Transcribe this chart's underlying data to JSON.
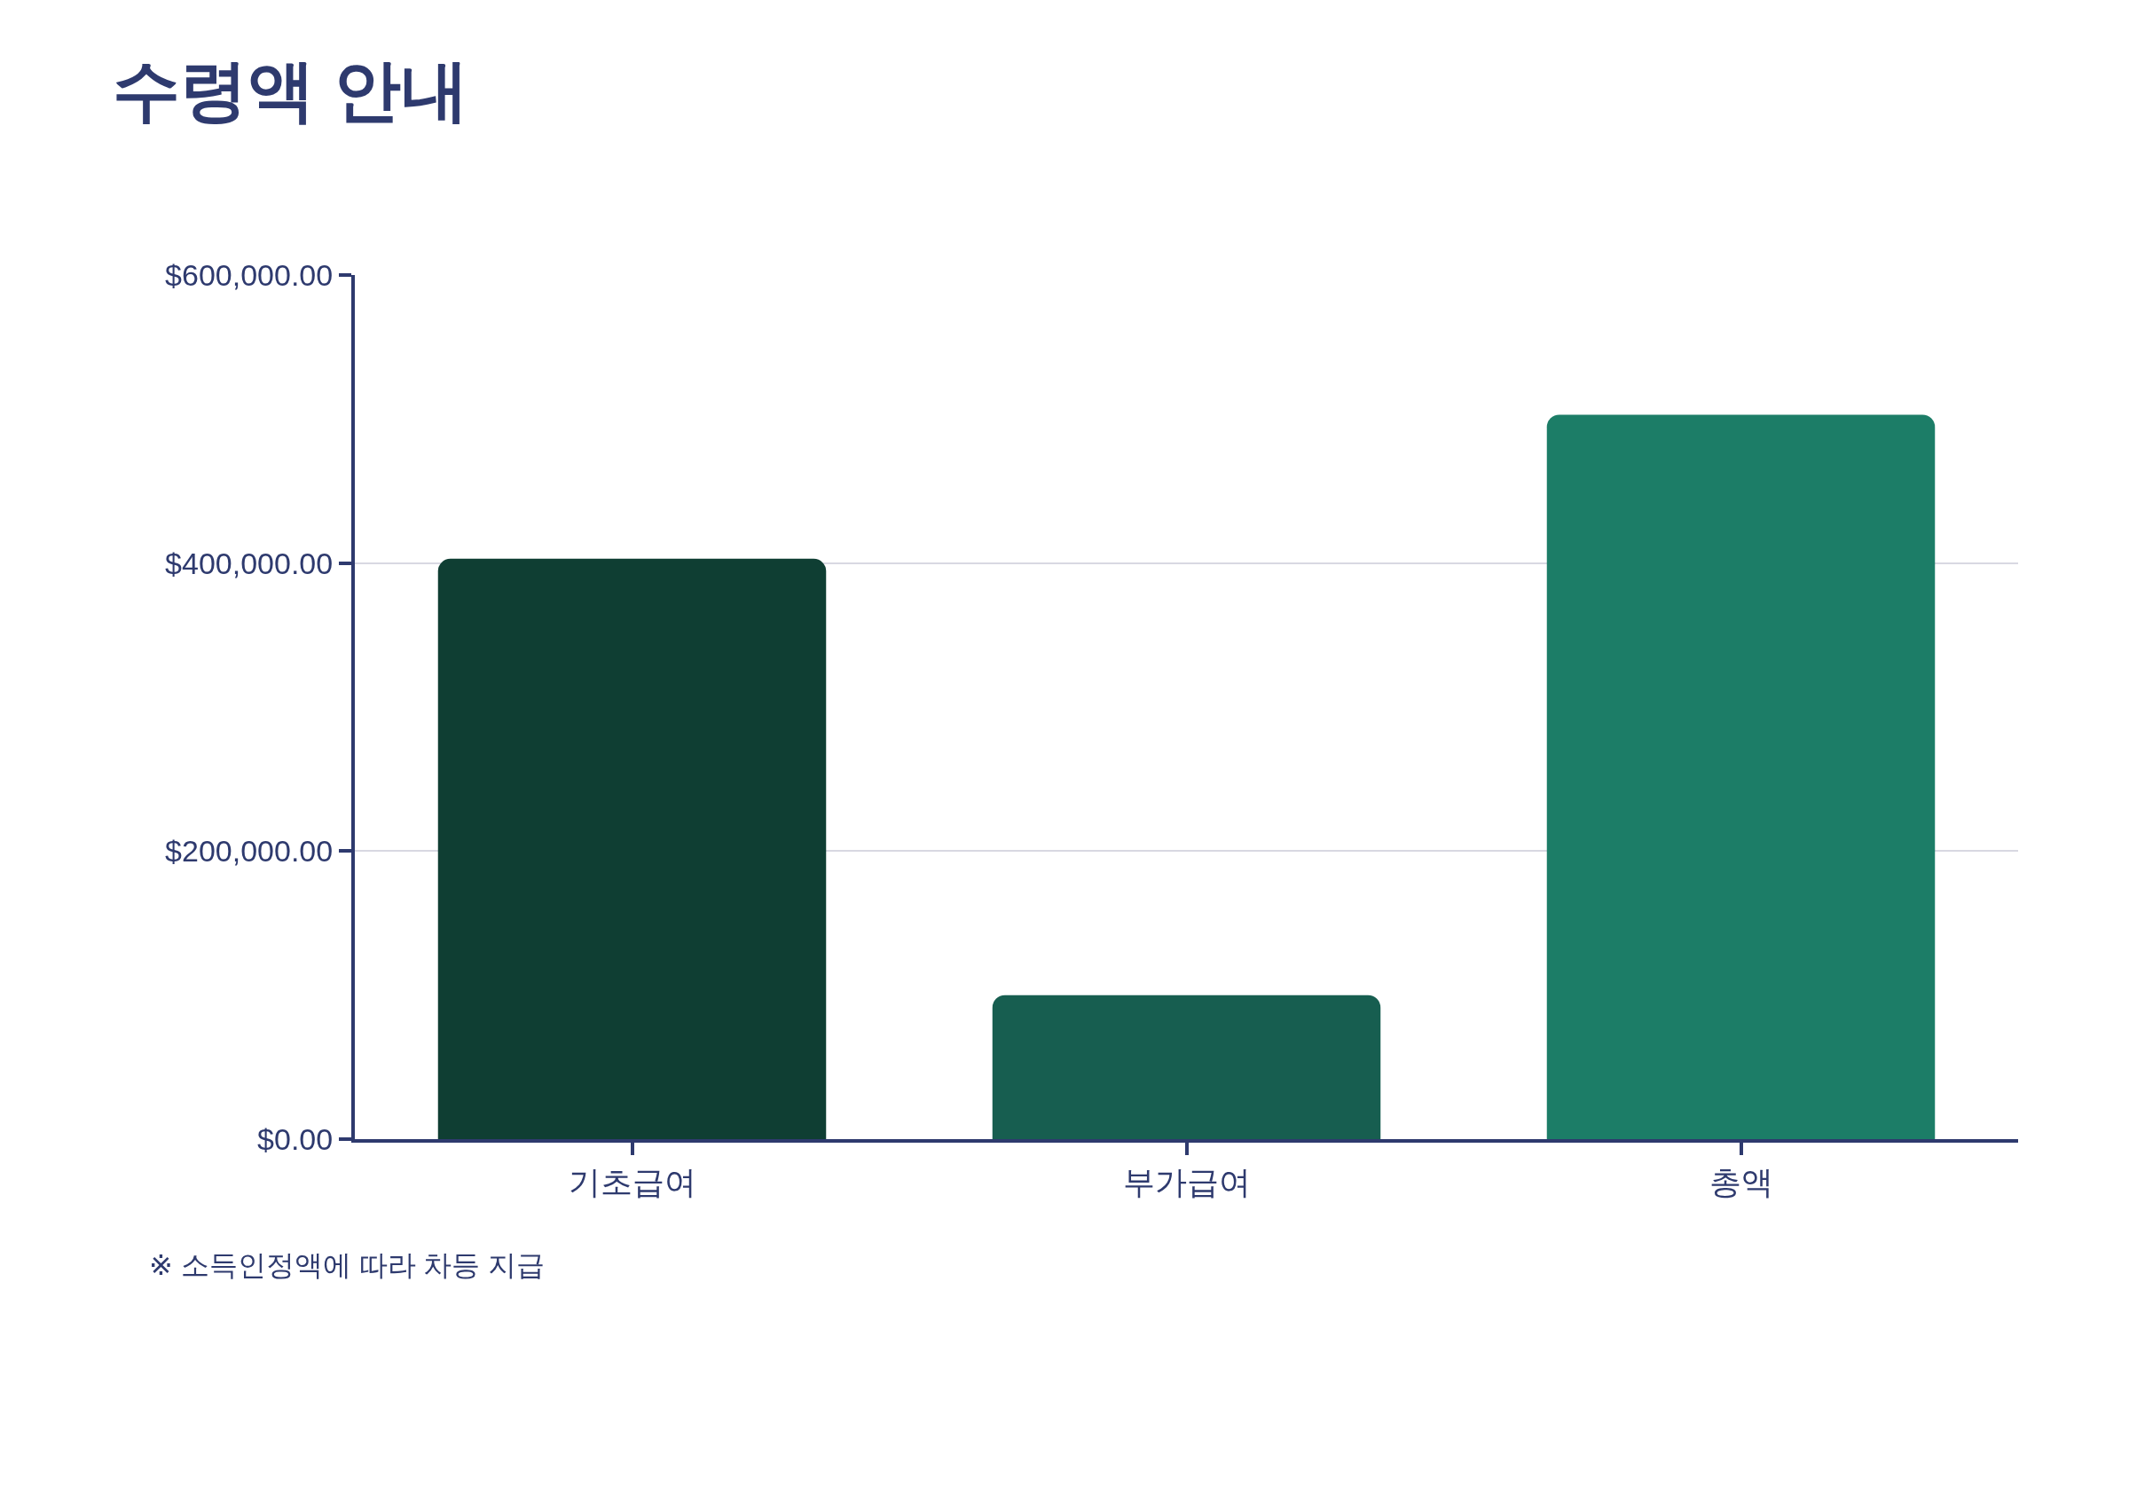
{
  "chart_data": {
    "type": "bar",
    "title": "수령액 안내",
    "categories": [
      "기초급여",
      "부가급여",
      "총액"
    ],
    "values": [
      403000,
      100000,
      503000
    ],
    "colors": [
      "#0f3e33",
      "#175e50",
      "#1c7d67"
    ],
    "ylim": [
      0,
      600000
    ],
    "yticks": [
      {
        "value": 0,
        "label": "$0.00"
      },
      {
        "value": 200000,
        "label": "$200,000.00"
      },
      {
        "value": 400000,
        "label": "$400,000.00"
      },
      {
        "value": 600000,
        "label": "$600,000.00"
      }
    ],
    "grid": "y",
    "annotations": [
      "※ 소득인정액에 따라 차등 지급"
    ]
  }
}
